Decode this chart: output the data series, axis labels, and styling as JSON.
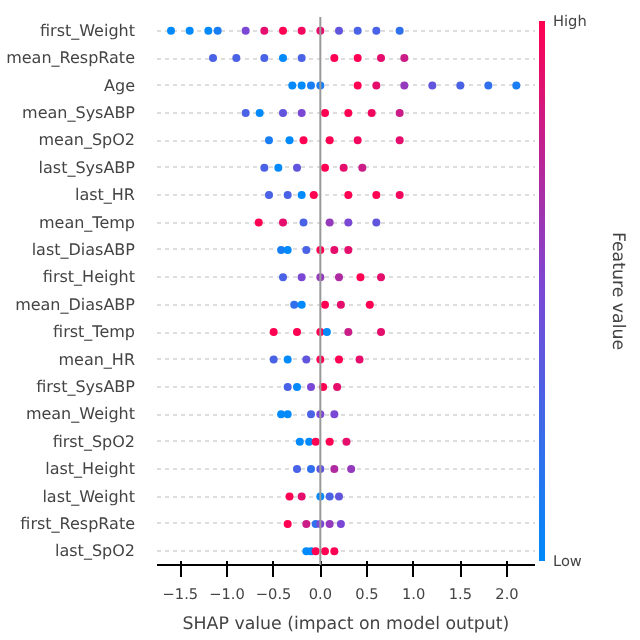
{
  "chart_data": {
    "type": "scatter",
    "orientation": "horizontal",
    "categories": [
      "first_Weight",
      "mean_RespRate",
      "Age",
      "mean_SysABP",
      "mean_SpO2",
      "last_SysABP",
      "last_HR",
      "mean_Temp",
      "last_DiasABP",
      "first_Height",
      "mean_DiasABP",
      "first_Temp",
      "mean_HR",
      "first_SysABP",
      "mean_Weight",
      "first_SpO2",
      "last_Height",
      "last_Weight",
      "first_RespRate",
      "last_SpO2"
    ],
    "xlabel": "SHAP value (impact on model output)",
    "clabel": "Feature value",
    "annotations": [
      "High",
      "Low"
    ],
    "xlim": [
      -1.75,
      2.3
    ],
    "xticks": [
      {
        "value": -1.5,
        "label": "−1.5"
      },
      {
        "value": -1.0,
        "label": "−1.0"
      },
      {
        "value": -0.5,
        "label": "−0.5"
      },
      {
        "value": 0.0,
        "label": "0.0"
      },
      {
        "value": 0.5,
        "label": "0.5"
      },
      {
        "value": 1.0,
        "label": "1.0"
      },
      {
        "value": 1.5,
        "label": "1.5"
      },
      {
        "value": 2.0,
        "label": "2.0"
      }
    ],
    "grid": "y",
    "marker": "circle",
    "ref_lines": [
      {
        "axis": "x",
        "value": 0,
        "color": "#999999"
      }
    ],
    "series": [
      {
        "values": [
          -1.6,
          -1.15,
          -0.3,
          -0.8,
          -0.55,
          -0.6,
          -0.55,
          -0.66,
          -0.42,
          -0.4,
          -0.28,
          -0.5,
          -0.5,
          -0.35,
          -0.42,
          -0.22,
          -0.25,
          -0.33,
          -0.35,
          -0.15
        ],
        "colors": [
          "#008afb",
          "#4a62e5",
          "#008afb",
          "#4a62e5",
          "#197df4",
          "#4a62e5",
          "#4a62e5",
          "#ff0052",
          "#197df4",
          "#4a62e5",
          "#3170ec",
          "#ff0052",
          "#4a62e5",
          "#4a62e5",
          "#008afb",
          "#008afb",
          "#4a62e5",
          "#ff0052",
          "#ff0052",
          "#008afb"
        ]
      },
      {
        "values": [
          -1.4,
          -0.9,
          -0.2,
          -0.65,
          -0.33,
          -0.45,
          -0.35,
          -0.4,
          -0.35,
          -0.2,
          -0.2,
          -0.25,
          -0.35,
          -0.25,
          -0.35,
          -0.12,
          -0.1,
          -0.2,
          -0.15,
          -0.1
        ],
        "colors": [
          "#008afb",
          "#4a62e5",
          "#008afb",
          "#008afb",
          "#008afb",
          "#008afb",
          "#4a62e5",
          "#e50e6c",
          "#008afb",
          "#7b48d6",
          "#008afb",
          "#ff0052",
          "#008afb",
          "#008afb",
          "#008afb",
          "#008afb",
          "#3170ec",
          "#e50e6c",
          "#ca1d87",
          "#008afb"
        ]
      },
      {
        "values": [
          -1.2,
          -0.6,
          -0.1,
          -0.4,
          -0.18,
          -0.25,
          -0.2,
          -0.18,
          -0.15,
          0,
          0.05,
          0,
          -0.15,
          -0.1,
          -0.1,
          -0.05,
          0,
          0,
          -0.05,
          -0.05
        ],
        "colors": [
          "#008afb",
          "#4a62e5",
          "#197df4",
          "#6255dd",
          "#ff0052",
          "#6255dd",
          "#008afb",
          "#4a62e5",
          "#4a62e5",
          "#953abc",
          "#ff0052",
          "#ff0052",
          "#6255dd",
          "#7b48d6",
          "#4a62e5",
          "#ff0052",
          "#6255dd",
          "#008afb",
          "#3170ec",
          "#ff0052"
        ]
      },
      {
        "values": [
          -1.1,
          -0.4,
          0,
          -0.2,
          0.1,
          0.05,
          -0.07,
          0.1,
          0,
          0.2,
          0.22,
          0.07,
          0,
          0.03,
          0,
          0.1,
          0.15,
          0.1,
          0,
          0.05
        ],
        "colors": [
          "#197df4",
          "#008afb",
          "#197df4",
          "#7b48d6",
          "#ff0052",
          "#ff0052",
          "#ff0052",
          "#953abc",
          "#ff0052",
          "#b02ba1",
          "#e50e6c",
          "#008afb",
          "#ff0052",
          "#ff0052",
          "#7b48d6",
          "#ff0052",
          "#b02ba1",
          "#4a62e5",
          "#7b48d6",
          "#ff0052"
        ]
      },
      {
        "values": [
          -0.8,
          -0.2,
          0.4,
          0.05,
          0.4,
          0.25,
          0.3,
          0.3,
          0.15,
          0.43,
          0.53,
          0.3,
          0.2,
          0.18,
          0.15,
          0.28,
          0.33,
          0.2,
          0.1,
          0.15
        ],
        "colors": [
          "#7b48d6",
          "#4a62e5",
          "#ff0052",
          "#ff0052",
          "#f2075f",
          "#e50e6c",
          "#ff0052",
          "#7b48d6",
          "#e50e6c",
          "#ff0052",
          "#ff0052",
          "#ca1d87",
          "#ff0052",
          "#e50e6c",
          "#7b48d6",
          "#e50e6c",
          "#953abc",
          "#6255dd",
          "#953abc",
          "#ff0052"
        ]
      },
      {
        "values": [
          -0.6,
          0.15,
          0.6,
          0.3,
          0.85,
          0.45,
          0.6,
          0.6,
          0.3,
          0.65,
          null,
          0.65,
          0.42,
          null,
          null,
          null,
          null,
          null,
          0.22,
          null
        ],
        "colors": [
          "#e50e6c",
          "#ff0052",
          "#e50e6c",
          "#ff0052",
          "#e50e6c",
          "#ca1d87",
          "#ff0052",
          "#6255dd",
          "#e50e6c",
          "#e50e6c",
          null,
          "#e50e6c",
          "#e50e6c",
          null,
          null,
          null,
          null,
          null,
          "#7b48d6",
          null
        ]
      },
      {
        "values": [
          -0.4,
          0.4,
          0.9,
          0.55,
          null,
          null,
          0.85,
          null,
          null,
          null,
          null,
          null,
          null,
          null,
          null,
          null,
          null,
          null,
          null,
          null
        ],
        "colors": [
          "#ff0052",
          "#ff0052",
          "#953abc",
          "#f2075f",
          null,
          null,
          "#f2075f",
          null,
          null,
          null,
          null,
          null,
          null,
          null,
          null,
          null,
          null,
          null,
          null,
          null
        ]
      },
      {
        "values": [
          -0.2,
          0.65,
          1.2,
          0.85,
          null,
          null,
          null,
          null,
          null,
          null,
          null,
          null,
          null,
          null,
          null,
          null,
          null,
          null,
          null,
          null
        ],
        "colors": [
          "#f2075f",
          "#e50e6c",
          "#6255dd",
          "#ca1d87",
          null,
          null,
          null,
          null,
          null,
          null,
          null,
          null,
          null,
          null,
          null,
          null,
          null,
          null,
          null,
          null
        ]
      },
      {
        "values": [
          0,
          0.9,
          1.5,
          null,
          null,
          null,
          null,
          null,
          null,
          null,
          null,
          null,
          null,
          null,
          null,
          null,
          null,
          null,
          null,
          null
        ],
        "colors": [
          "#e50e6c",
          "#ca1d87",
          "#4a62e5",
          null,
          null,
          null,
          null,
          null,
          null,
          null,
          null,
          null,
          null,
          null,
          null,
          null,
          null,
          null,
          null,
          null
        ]
      },
      {
        "values": [
          0.2,
          null,
          1.8,
          null,
          null,
          null,
          null,
          null,
          null,
          null,
          null,
          null,
          null,
          null,
          null,
          null,
          null,
          null,
          null,
          null
        ],
        "colors": [
          "#6255dd",
          null,
          "#3170ec",
          null,
          null,
          null,
          null,
          null,
          null,
          null,
          null,
          null,
          null,
          null,
          null,
          null,
          null,
          null,
          null,
          null
        ]
      },
      {
        "values": [
          0.4,
          null,
          2.1,
          null,
          null,
          null,
          null,
          null,
          null,
          null,
          null,
          null,
          null,
          null,
          null,
          null,
          null,
          null,
          null,
          null
        ],
        "colors": [
          "#4a62e5",
          null,
          "#197df4",
          null,
          null,
          null,
          null,
          null,
          null,
          null,
          null,
          null,
          null,
          null,
          null,
          null,
          null,
          null,
          null,
          null
        ]
      },
      {
        "values": [
          0.6,
          null,
          null,
          null,
          null,
          null,
          null,
          null,
          null,
          null,
          null,
          null,
          null,
          null,
          null,
          null,
          null,
          null,
          null,
          null
        ],
        "colors": [
          "#4a62e5",
          null,
          null,
          null,
          null,
          null,
          null,
          null,
          null,
          null,
          null,
          null,
          null,
          null,
          null,
          null,
          null,
          null,
          null,
          null
        ]
      },
      {
        "values": [
          0.85,
          null,
          null,
          null,
          null,
          null,
          null,
          null,
          null,
          null,
          null,
          null,
          null,
          null,
          null,
          null,
          null,
          null,
          null,
          null
        ],
        "colors": [
          "#3170ec",
          null,
          null,
          null,
          null,
          null,
          null,
          null,
          null,
          null,
          null,
          null,
          null,
          null,
          null,
          null,
          null,
          null,
          null,
          null
        ]
      }
    ]
  }
}
